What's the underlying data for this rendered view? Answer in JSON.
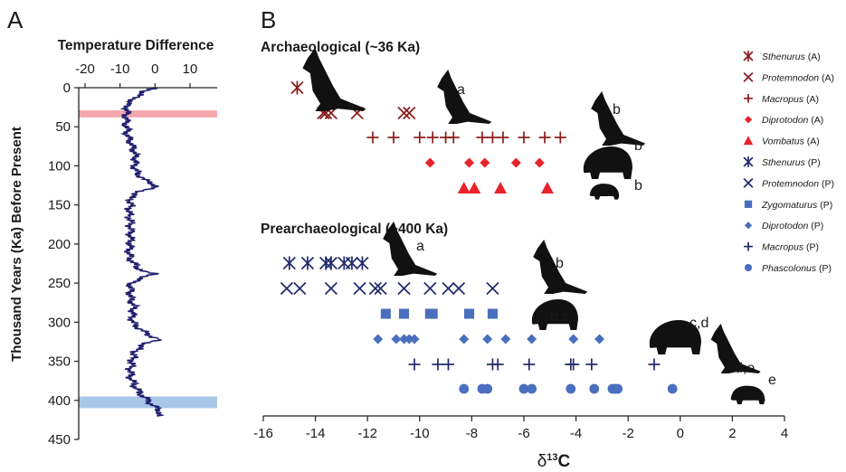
{
  "panels": {
    "a": "A",
    "b": "B"
  },
  "colors": {
    "arch": "#8b1a1a",
    "arch_bright": "#e8232a",
    "pre_dark": "#1f2a6b",
    "pre_light": "#4a6fbf",
    "temp_line": "#1f1f6e",
    "band_pink": "#f4a7ad",
    "band_blue": "#a9c8e8"
  },
  "chart_data": [
    {
      "type": "line",
      "panel": "A",
      "title": "Temperature Difference",
      "xlabel": "Temperature Difference",
      "ylabel": "Thousand Years (Ka) Before Present",
      "xlim": [
        -20,
        10
      ],
      "ylim": [
        0,
        450
      ],
      "x_ticks": [
        -20,
        -10,
        0,
        10
      ],
      "y_ticks": [
        0,
        50,
        100,
        150,
        200,
        250,
        300,
        350,
        400,
        450
      ],
      "y_inverted": true,
      "highlight_bands": [
        {
          "from": 29,
          "to": 38,
          "color": "#f4a7ad"
        },
        {
          "from": 395,
          "to": 410,
          "color": "#a9c8e8"
        }
      ],
      "series": [
        {
          "ka": [
            0,
            5,
            10,
            15,
            20,
            25,
            30,
            35,
            40,
            45,
            50,
            60,
            70,
            80,
            90,
            100,
            110,
            118,
            122,
            126,
            128,
            132,
            140,
            150,
            160,
            170,
            180,
            190,
            200,
            210,
            220,
            230,
            236,
            238,
            242,
            250,
            260,
            270,
            280,
            290,
            300,
            310,
            318,
            322,
            326,
            332,
            340,
            350,
            360,
            370,
            380,
            390,
            400,
            405,
            410,
            415,
            420
          ],
          "temp": [
            0,
            -3,
            -5,
            -6,
            -8,
            -8,
            -8,
            -8.5,
            -8,
            -8.5,
            -8,
            -8,
            -7,
            -6,
            -5.5,
            -6,
            -5,
            -3,
            -1,
            0.5,
            -1,
            -4,
            -7,
            -7,
            -7.5,
            -7,
            -7,
            -7,
            -7,
            -7.5,
            -7,
            -5,
            -3,
            0,
            -3,
            -7,
            -7,
            -7,
            -6,
            -6.5,
            -6.5,
            -4,
            -1,
            1,
            -2,
            -4.5,
            -6,
            -6.5,
            -7,
            -7,
            -6,
            -4.5,
            -2,
            -1,
            0.5,
            1.5,
            0.5
          ]
        }
      ]
    },
    {
      "type": "scatter",
      "panel": "B",
      "xlabel": "δ13C",
      "xlabel_parts": {
        "delta": "δ",
        "sup": "13",
        "letter": "C"
      },
      "xlim": [
        -16,
        4
      ],
      "x_ticks": [
        -16,
        -14,
        -12,
        -10,
        -8,
        -6,
        -4,
        -2,
        0,
        2,
        4
      ],
      "groups": [
        {
          "title": "Archaeological (~36 Ka)"
        },
        {
          "title": "Prearchaeological (~400 Ka)"
        }
      ],
      "legend_position": "top-right",
      "series": [
        {
          "name": "Sthenurus",
          "tag": "(A)",
          "marker": "asterisk",
          "color": "#8b1a1a",
          "x": [
            -14.7
          ],
          "annotation": ""
        },
        {
          "name": "Protemnodon",
          "tag": "(A)",
          "marker": "x",
          "color": "#8b1a1a",
          "x": [
            -13.7,
            -13.6,
            -13.4,
            -12.4,
            -10.6,
            -10.4
          ],
          "annotation": "a"
        },
        {
          "name": "Macropus",
          "tag": "(A)",
          "marker": "plus",
          "color": "#8b1a1a",
          "x": [
            -11.8,
            -11.0,
            -10.0,
            -9.5,
            -9.0,
            -8.7,
            -7.6,
            -7.2,
            -6.8,
            -6.0,
            -5.2,
            -4.6
          ],
          "annotation": "b"
        },
        {
          "name": "Diprotodon",
          "tag": "(A)",
          "marker": "diamond",
          "color": "#e8232a",
          "x": [
            -9.6,
            -8.1,
            -7.5,
            -6.3,
            -5.4
          ],
          "annotation": "b"
        },
        {
          "name": "Vombatus",
          "tag": "(A)",
          "marker": "triangle",
          "color": "#e8232a",
          "x": [
            -8.3,
            -7.9,
            -6.9,
            -5.1
          ],
          "annotation": "b"
        },
        {
          "name": "Sthenurus",
          "tag": "(P)",
          "marker": "asterisk",
          "color": "#1f2a6b",
          "x": [
            -15.0,
            -14.3,
            -13.6,
            -13.4,
            -12.9,
            -12.6,
            -12.2
          ],
          "annotation": "a"
        },
        {
          "name": "Protemnodon",
          "tag": "(P)",
          "marker": "x",
          "color": "#1f2a6b",
          "x": [
            -15.1,
            -14.6,
            -13.4,
            -12.3,
            -11.7,
            -11.5,
            -10.6,
            -9.6,
            -8.9,
            -8.5,
            -7.2
          ],
          "annotation": "b"
        },
        {
          "name": "Zygomaturus",
          "tag": "(P)",
          "marker": "square",
          "color": "#4a6fbf",
          "x": [
            -11.3,
            -10.6,
            -9.6,
            -9.5,
            -8.1,
            -7.2
          ],
          "annotation": "b,c"
        },
        {
          "name": "Diprotodon",
          "tag": "(P)",
          "marker": "diamond",
          "color": "#4a6fbf",
          "x": [
            -11.6,
            -10.9,
            -10.6,
            -10.4,
            -10.2,
            -8.3,
            -7.4,
            -6.7,
            -5.7,
            -4.1,
            -3.1
          ],
          "annotation": "c,d"
        },
        {
          "name": "Macropus",
          "tag": "(P)",
          "marker": "plus",
          "color": "#1f2a6b",
          "x": [
            -10.2,
            -9.3,
            -8.9,
            -7.2,
            -7.0,
            -5.8,
            -4.2,
            -4.1,
            -3.4,
            -1.0
          ],
          "annotation": "d,e"
        },
        {
          "name": "Phascolonus",
          "tag": "(P)",
          "marker": "circle",
          "color": "#4a6fbf",
          "x": [
            -8.3,
            -7.6,
            -7.4,
            -6.0,
            -5.7,
            -4.2,
            -3.3,
            -2.6,
            -2.5,
            -2.4,
            -0.3
          ],
          "annotation": "e"
        }
      ]
    }
  ]
}
